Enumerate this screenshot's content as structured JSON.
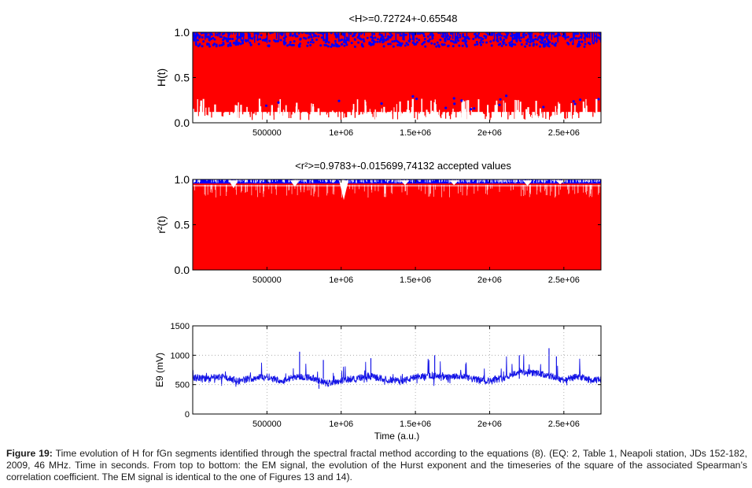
{
  "colors": {
    "red_series": "#ff0000",
    "blue_series": "#0000ff",
    "em_signal": "#1414e6",
    "axis": "#000000",
    "grid": "#a0a0a0"
  },
  "chart_data": [
    {
      "type": "scatter",
      "title": "<H>=0.72724+-0.65548",
      "xlabel": "",
      "ylabel": "H(t)",
      "xlim": [
        0,
        2750000
      ],
      "ylim": [
        0,
        1
      ],
      "x_ticks": [
        500000,
        1000000,
        1500000,
        2000000,
        2500000
      ],
      "x_tick_labels": [
        "500000",
        "1e+06",
        "1.5e+06",
        "2e+06",
        "2.5e+06"
      ],
      "y_ticks": [
        0,
        0.5,
        1
      ],
      "y_tick_labels": [
        "0.0",
        "0.5",
        "1.0"
      ],
      "grid": false,
      "series": [
        {
          "color": "#ff0000",
          "description_values": {
            "y_min": 0,
            "y_max": 1
          }
        },
        {
          "color": "#0000ff",
          "description_values": {
            "y_min": 0,
            "y_max": 1
          }
        }
      ]
    },
    {
      "type": "scatter",
      "title": "<r²>=0.9783+-0.015699,74132 accepted values",
      "xlabel": "",
      "ylabel": "r²(t)",
      "xlim": [
        0,
        2750000
      ],
      "ylim": [
        0,
        1
      ],
      "x_ticks": [
        500000,
        1000000,
        1500000,
        2000000,
        2500000
      ],
      "x_tick_labels": [
        "500000",
        "1e+06",
        "1.5e+06",
        "2e+06",
        "2.5e+06"
      ],
      "y_ticks": [
        0,
        0.5,
        1
      ],
      "y_tick_labels": [
        "0.0",
        "0.5",
        "1.0"
      ],
      "grid": false,
      "series": [
        {
          "color": "#ff0000",
          "description_values": {
            "y_min": 0,
            "y_max": 0.97
          }
        },
        {
          "color": "#0000ff",
          "description_values": {
            "y_min": 0.95,
            "y_max": 1
          }
        }
      ]
    },
    {
      "type": "line",
      "title": "",
      "xlabel": "Time  (a.u.)",
      "ylabel": "E9 (mV)",
      "xlim": [
        0,
        2750000
      ],
      "ylim": [
        0,
        1500
      ],
      "x_ticks": [
        500000,
        1000000,
        1500000,
        2000000,
        2500000
      ],
      "x_tick_labels": [
        "500000",
        "1e+06",
        "1.5e+06",
        "2e+06",
        "2.5e+06"
      ],
      "y_ticks": [
        0,
        500,
        1000,
        1500
      ],
      "y_tick_labels": [
        "0",
        "500",
        "1000",
        "1500"
      ],
      "grid": true,
      "series": [
        {
          "color": "#1414e6",
          "x": [
            0,
            100000,
            200000,
            300000,
            400000,
            500000,
            600000,
            700000,
            800000,
            900000,
            1000000,
            1100000,
            1200000,
            1300000,
            1400000,
            1500000,
            1600000,
            1700000,
            1800000,
            1900000,
            2000000,
            2100000,
            2200000,
            2300000,
            2400000,
            2500000,
            2600000,
            2700000,
            2750000
          ],
          "y": [
            620,
            600,
            640,
            560,
            610,
            640,
            560,
            640,
            620,
            520,
            570,
            610,
            640,
            590,
            560,
            620,
            660,
            620,
            640,
            590,
            560,
            620,
            720,
            700,
            650,
            580,
            640,
            560,
            600
          ]
        }
      ]
    }
  ],
  "caption": {
    "label": "Figure 19:",
    "text": " Time evolution of H for fGn segments identified through the spectral fractal method according to the equations (8). (EQ: 2, Table 1, Neapoli station, JDs 152-182, 2009, 46 MHz. Time in seconds. From top to bottom: the EM signal, the evolution of the Hurst exponent and the timeseries of the square of the associated Spearman’s correlation coefficient. The EM signal is identical to the one of Figures 13 and 14)."
  }
}
